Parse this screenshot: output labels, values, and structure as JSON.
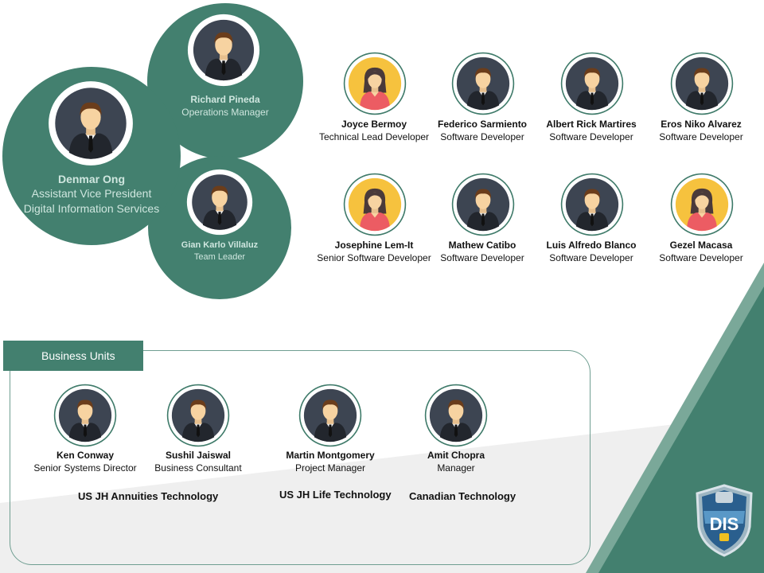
{
  "leadership": {
    "head": {
      "name": "Denmar Ong",
      "title_line1": "Assistant Vice President",
      "title_line2": "Digital Information Services"
    },
    "ops": {
      "name": "Richard Pineda",
      "title": "Operations Manager"
    },
    "team_lead": {
      "name": "Gian Karlo Villaluz",
      "title": "Team Leader"
    }
  },
  "developers": [
    {
      "name": "Joyce Bermoy",
      "role": "Technical Lead Developer",
      "avatar": "female"
    },
    {
      "name": "Federico Sarmiento",
      "role": "Software Developer",
      "avatar": "male"
    },
    {
      "name": "Albert Rick Martires",
      "role": "Software Developer",
      "avatar": "male"
    },
    {
      "name": "Eros Niko Alvarez",
      "role": "Software Developer",
      "avatar": "male"
    },
    {
      "name": "Josephine Lem-It",
      "role": "Senior Software Developer",
      "avatar": "female"
    },
    {
      "name": "Mathew Catibo",
      "role": "Software Developer",
      "avatar": "male"
    },
    {
      "name": "Luis Alfredo Blanco",
      "role": "Software Developer",
      "avatar": "male"
    },
    {
      "name": "Gezel Macasa",
      "role": "Software Developer",
      "avatar": "female"
    }
  ],
  "business_units": {
    "tab_label": "Business Units",
    "people": [
      {
        "name": "Ken Conway",
        "role": "Senior Systems Director"
      },
      {
        "name": "Sushil Jaiswal",
        "role": "Business Consultant"
      },
      {
        "name": "Martin Montgomery",
        "role": "Project Manager"
      },
      {
        "name": "Amit Chopra",
        "role": "Manager"
      }
    ],
    "groups": [
      "US JH Annuities Technology",
      "US JH Life Technology",
      "Canadian Technology"
    ]
  },
  "logo": {
    "text": "DIS"
  },
  "colors": {
    "accent": "#43806f",
    "dark_accent": "#2f6a5c",
    "avatar_bg": "#3d4552",
    "female_bg": "#f6c23e"
  }
}
